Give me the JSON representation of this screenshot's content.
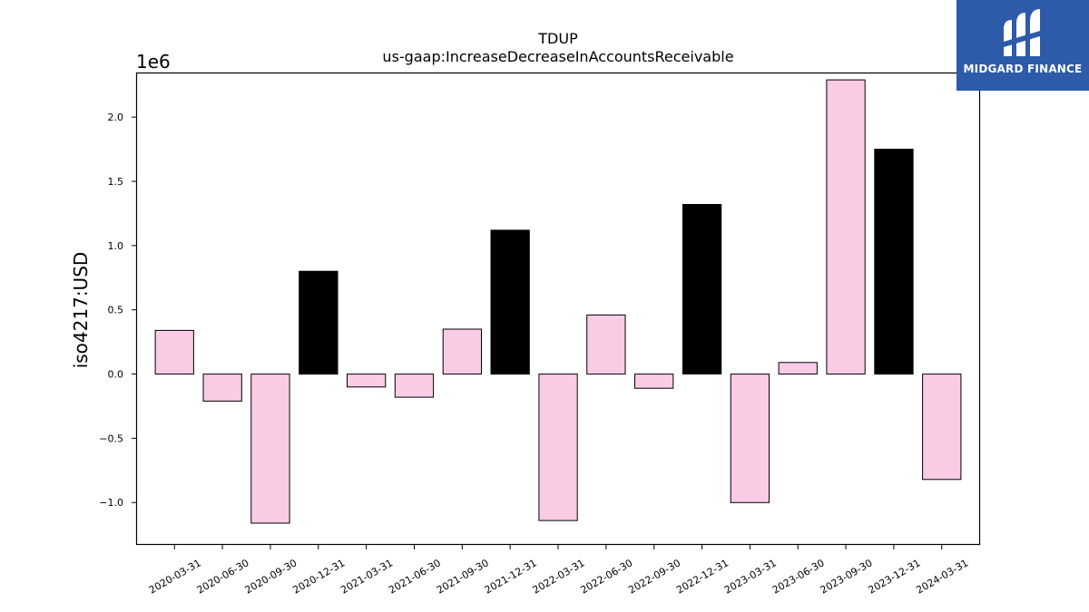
{
  "chart_data": {
    "type": "bar",
    "title": "TDUP",
    "subtitle": "us-gaap:IncreaseDecreaseInAccountsReceivable",
    "xlabel": "",
    "ylabel": "iso4217:USD",
    "scale_label": "1e6",
    "ylim": [
      -1.33,
      2.34
    ],
    "yticks": [
      -1.0,
      -0.5,
      0.0,
      0.5,
      1.0,
      1.5,
      2.0
    ],
    "ytick_labels": [
      "−1.0",
      "−0.5",
      "0.0",
      "0.5",
      "1.0",
      "1.5",
      "2.0"
    ],
    "categories": [
      "2020-03-31",
      "2020-06-30",
      "2020-09-30",
      "2020-12-31",
      "2021-03-31",
      "2021-06-30",
      "2021-09-30",
      "2021-12-31",
      "2022-03-31",
      "2022-06-30",
      "2022-09-30",
      "2022-12-31",
      "2023-03-31",
      "2023-06-30",
      "2023-09-30",
      "2023-12-31",
      "2024-03-31"
    ],
    "values": [
      0.34,
      -0.21,
      -1.16,
      0.8,
      -0.1,
      -0.18,
      0.35,
      1.12,
      -1.14,
      0.46,
      -0.11,
      1.32,
      -1.0,
      0.09,
      2.29,
      1.75,
      -0.82
    ],
    "bar_colors": [
      "#fbcbe6",
      "#fbcbe6",
      "#fbcbe6",
      "#000000",
      "#fbcbe6",
      "#fbcbe6",
      "#fbcbe6",
      "#000000",
      "#fbcbe6",
      "#fbcbe6",
      "#fbcbe6",
      "#000000",
      "#fbcbe6",
      "#fbcbe6",
      "#fbcbe6",
      "#000000",
      "#fbcbe6"
    ],
    "grid": false
  },
  "logo": {
    "brand_text": "MIDGARD FINANCE",
    "background": "#2d5aa9",
    "icon": "midgard-m-logo-icon"
  }
}
